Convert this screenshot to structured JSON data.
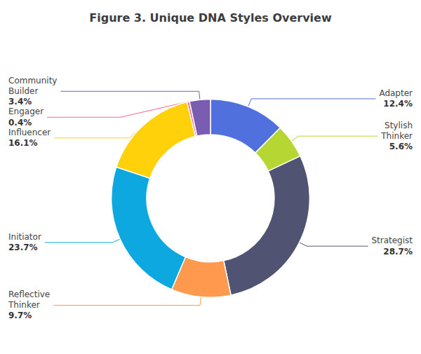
{
  "chart_data": {
    "type": "pie",
    "title": "Figure 3. Unique DNA Styles Overview",
    "categories": [
      "Adapter",
      "Stylish\nThinker",
      "Strategist",
      "Reflective\nThinker",
      "Initiator",
      "Influencer",
      "Engager",
      "Community\nBuilder"
    ],
    "values": [
      12.4,
      5.6,
      28.7,
      9.7,
      23.7,
      16.1,
      0.4,
      3.4
    ],
    "value_labels": [
      "12.4%",
      "5.6%",
      "28.7%",
      "9.7%",
      "23.7%",
      "16.1%",
      "0.4%",
      "3.4%"
    ],
    "data_labels": true
  }
}
